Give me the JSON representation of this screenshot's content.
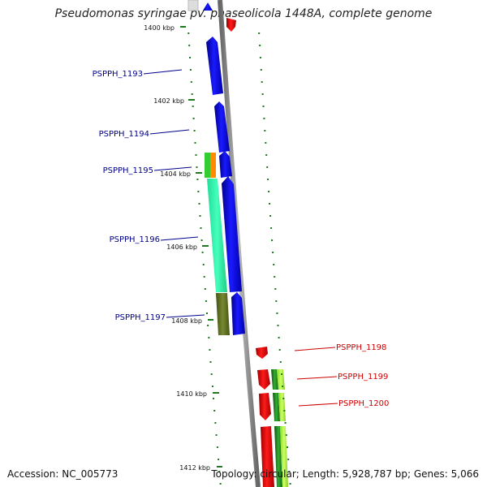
{
  "title": "Pseudomonas syringae pv. phaseolicola 1448A, complete genome",
  "accession": "Accession: NC_005773",
  "summary": "Topology: circular; Length: 5,928,787 bp; Genes: 5,066",
  "axis": {
    "unit": "kbp",
    "ticks": [
      1400,
      1402,
      1404,
      1406,
      1408,
      1410,
      1412
    ]
  },
  "genes": [
    {
      "id": "PSPPH_1193",
      "strand": "forward",
      "color": "#0000ee"
    },
    {
      "id": "PSPPH_1194",
      "strand": "forward",
      "color": "#0000ee"
    },
    {
      "id": "PSPPH_1195",
      "strand": "forward",
      "color": "#0000ee"
    },
    {
      "id": "PSPPH_1196",
      "strand": "forward",
      "color": "#0000ee"
    },
    {
      "id": "PSPPH_1197",
      "strand": "forward",
      "color": "#0000ee"
    },
    {
      "id": "PSPPH_1198",
      "strand": "reverse",
      "color": "#ee0000"
    },
    {
      "id": "PSPPH_1199",
      "strand": "reverse",
      "color": "#ee0000"
    },
    {
      "id": "PSPPH_1200",
      "strand": "reverse",
      "color": "#ee0000"
    }
  ],
  "colors": {
    "backbone": "#8c8c8c",
    "forward_gene": "#0000ee",
    "reverse_gene": "#ee0000",
    "forward_label": "#00008b",
    "reverse_label": "#cc0000",
    "gc_skew": "#1f7a1f",
    "orange_feature": "#ff8c00",
    "green_feature": "#33cc33",
    "teal_feature": "#33ffaa",
    "olive_feature": "#667722",
    "lime_feature": "#aaff44",
    "dark_green_feature": "#228822"
  }
}
